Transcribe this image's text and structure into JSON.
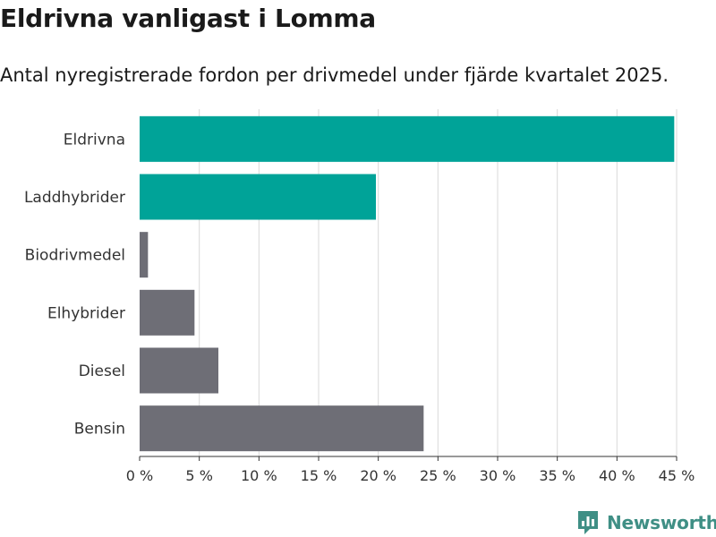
{
  "chart_data": {
    "type": "bar",
    "orientation": "horizontal",
    "title": "Eldrivna vanligast i Lomma",
    "subtitle": "Antal nyregistrerade fordon per drivmedel under fjärde kvartalet 2025.",
    "categories": [
      "Eldrivna",
      "Laddhybrider",
      "Biodrivmedel",
      "Elhybrider",
      "Diesel",
      "Bensin"
    ],
    "values": [
      44.8,
      19.8,
      0.7,
      4.6,
      6.6,
      23.8
    ],
    "colors": [
      "#00a398",
      "#00a398",
      "#6e6e76",
      "#6e6e76",
      "#6e6e76",
      "#6e6e76"
    ],
    "xlim": [
      0,
      45
    ],
    "xticks": [
      0,
      5,
      10,
      15,
      20,
      25,
      30,
      35,
      40,
      45
    ],
    "xtick_labels": [
      "0 %",
      "5 %",
      "10 %",
      "15 %",
      "20 %",
      "25 %",
      "30 %",
      "35 %",
      "40 %",
      "45 %"
    ],
    "xlabel": "",
    "ylabel": "",
    "grid": true
  },
  "branding": {
    "name": "Newsworthy",
    "color": "#3f8f85",
    "icon": "newsworthy-logo-icon"
  }
}
